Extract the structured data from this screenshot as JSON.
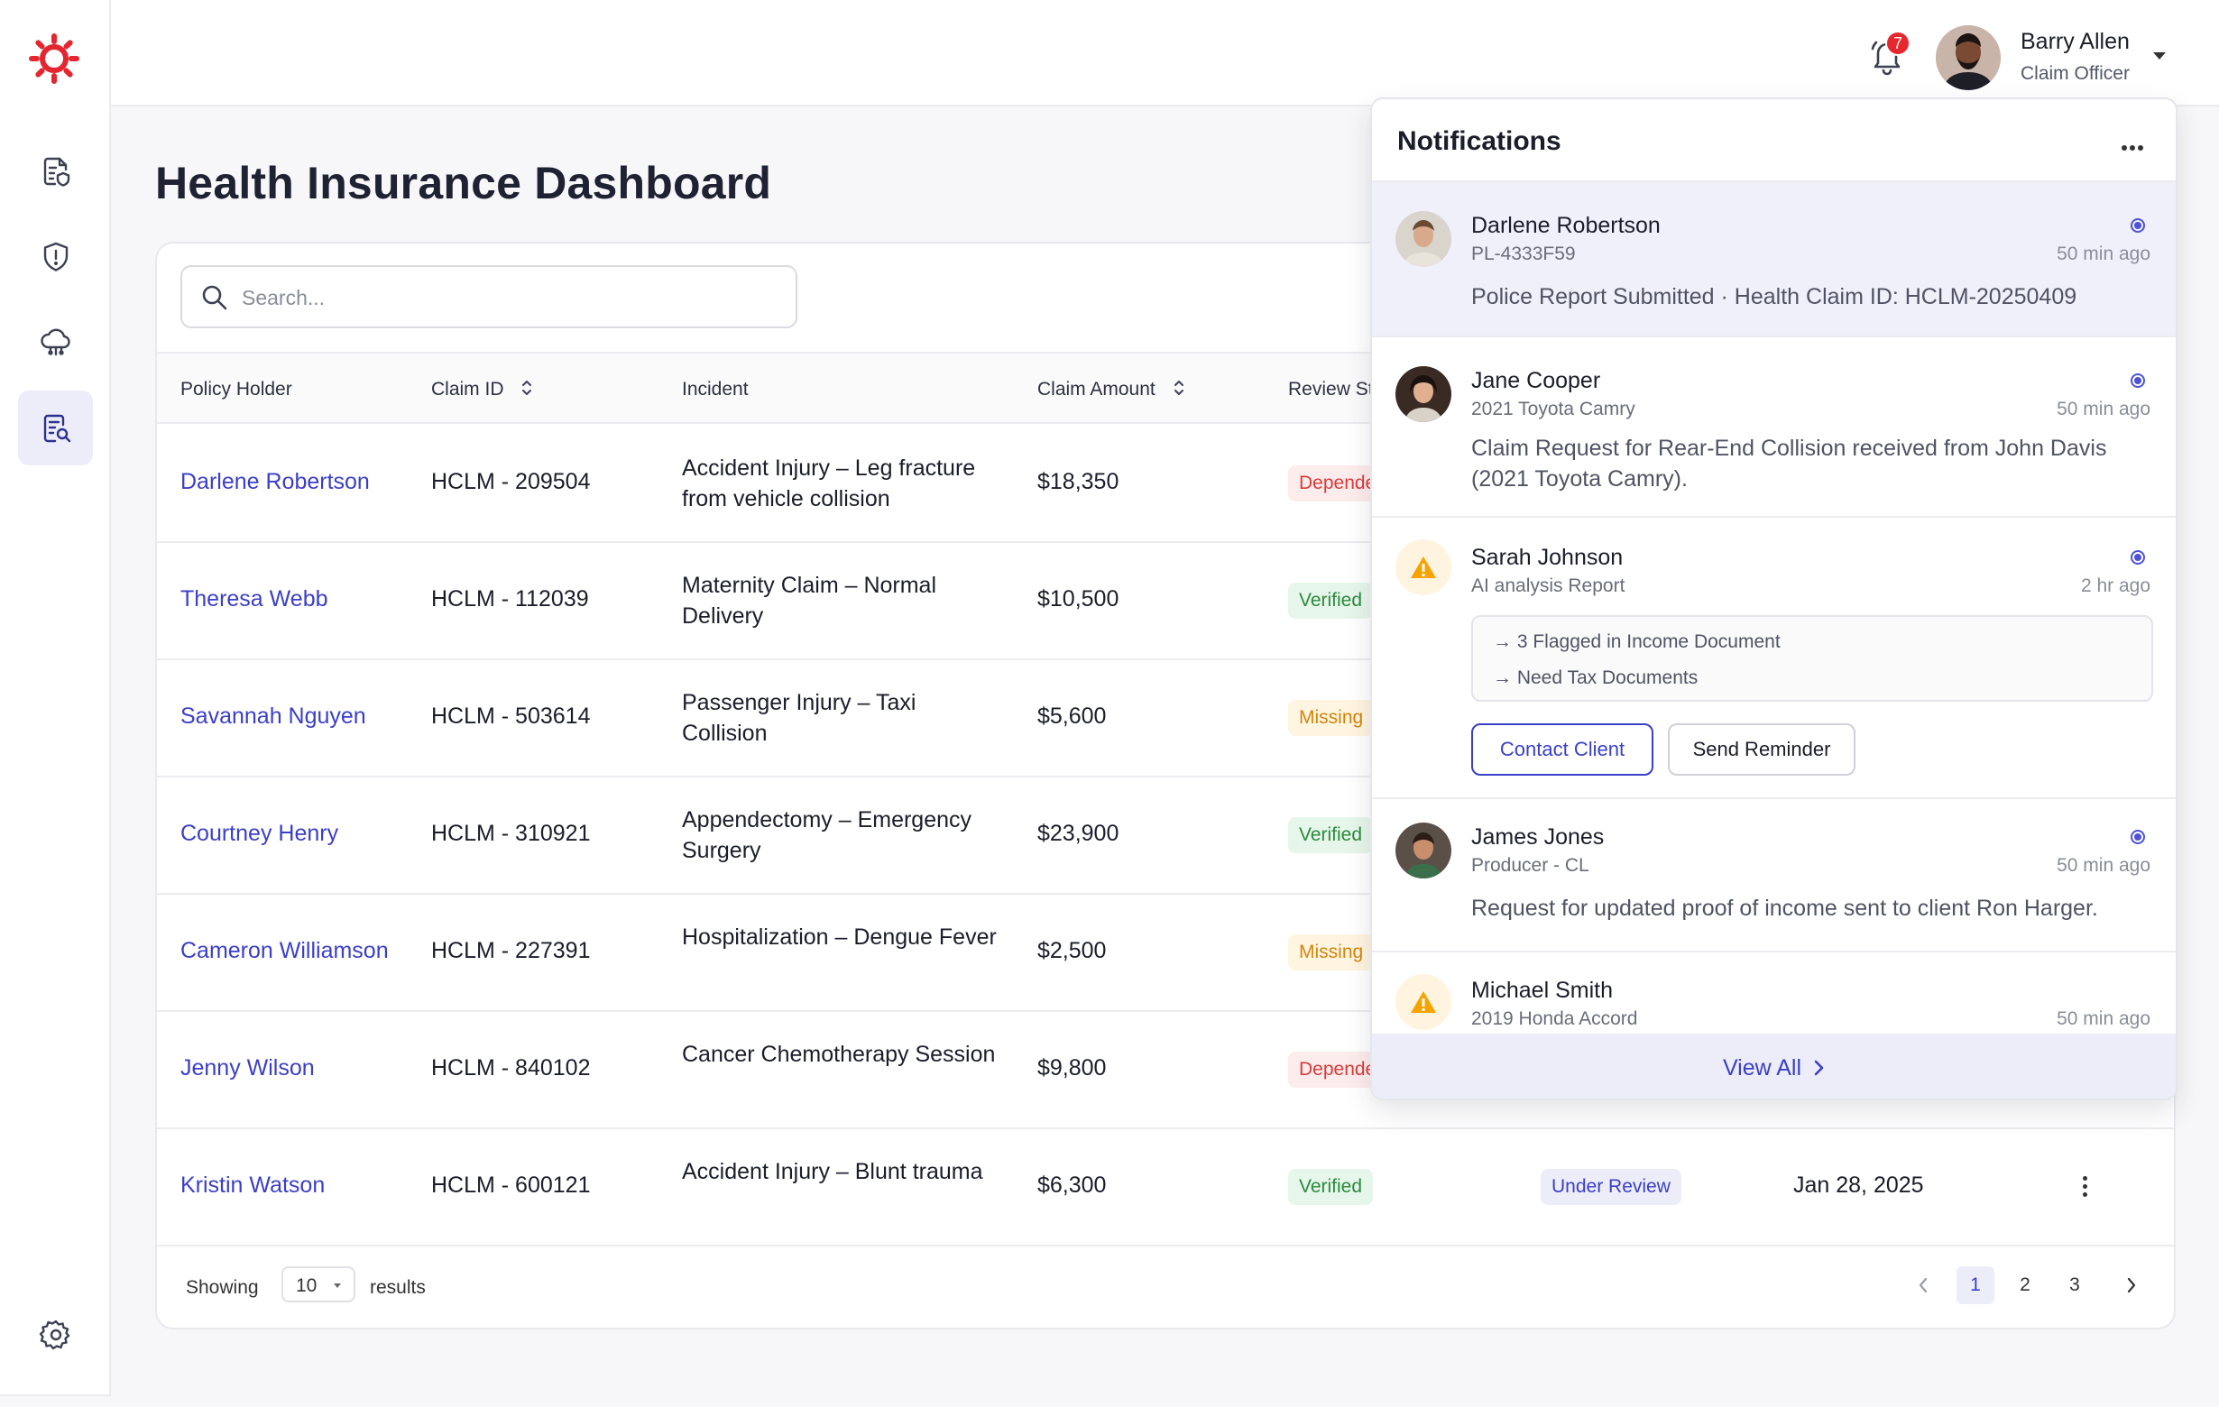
{
  "header": {
    "notification_count": "7",
    "user_name": "Barry Allen",
    "user_role": "Claim Officer"
  },
  "page": {
    "title": "Health Insurance Dashboard"
  },
  "search": {
    "placeholder": "Search..."
  },
  "table": {
    "columns": [
      "Policy Holder",
      "Claim ID",
      "Incident",
      "Claim Amount",
      "Review St"
    ],
    "rows": [
      {
        "holder": "Darlene Robertson",
        "claim_id": "HCLM - 209504",
        "incident": "Accident Injury – Leg fracture from vehicle collision",
        "amount": "$18,350",
        "review": "Depende",
        "review_kind": "dep"
      },
      {
        "holder": "Theresa Webb",
        "claim_id": "HCLM - 112039",
        "incident": "Maternity Claim – Normal Delivery",
        "amount": "$10,500",
        "review": "Verified",
        "review_kind": "ver"
      },
      {
        "holder": "Savannah Nguyen",
        "claim_id": "HCLM - 503614",
        "incident": "Passenger Injury – Taxi Collision",
        "amount": "$5,600",
        "review": "Missing",
        "review_kind": "mis"
      },
      {
        "holder": "Courtney Henry",
        "claim_id": "HCLM - 310921",
        "incident": "Appendectomy – Emergency Surgery",
        "amount": "$23,900",
        "review": "Verified",
        "review_kind": "ver"
      },
      {
        "holder": "Cameron Williamson",
        "claim_id": "HCLM - 227391",
        "incident": "Hospitalization – Dengue Fever",
        "amount": "$2,500",
        "review": "Missing",
        "review_kind": "mis"
      },
      {
        "holder": "Jenny Wilson",
        "claim_id": "HCLM - 840102",
        "incident": "Cancer Chemotherapy Session",
        "amount": "$9,800",
        "review": "Depende",
        "review_kind": "dep"
      },
      {
        "holder": "Kristin Watson",
        "claim_id": "HCLM - 600121",
        "incident": "Accident Injury – Blunt trauma",
        "amount": "$6,300",
        "review": "Verified",
        "review_kind": "ver",
        "status": "Under Review",
        "date": "Jan 28, 2025"
      }
    ]
  },
  "footer": {
    "showing": "Showing",
    "per_page": "10",
    "results": "results",
    "pages": [
      "1",
      "2",
      "3"
    ]
  },
  "notifications": {
    "title": "Notifications",
    "items": [
      {
        "name": "Darlene Robertson",
        "sub": "PL-4333F59",
        "time": "50 min ago",
        "message": "Police Report Submitted · Health Claim ID: HCLM-20250409"
      },
      {
        "name": "Jane Cooper",
        "sub": "2021 Toyota Camry",
        "time": "50 min ago",
        "message": "Claim Request for Rear-End Collision received from John Davis (2021 Toyota Camry)."
      },
      {
        "name": "Sarah Johnson",
        "sub": "AI analysis Report",
        "time": "2 hr ago",
        "lines": [
          "→ 3 Flagged in Income Document",
          "→ Need Tax Documents"
        ],
        "actions": [
          "Contact Client",
          "Send Reminder"
        ]
      },
      {
        "name": "James Jones",
        "sub": "Producer - CL",
        "time": "50 min ago",
        "message": "Request for updated proof of income sent to client Ron Harger."
      },
      {
        "name": "Michael Smith",
        "sub": "2019 Honda Accord",
        "time": "50 min ago"
      }
    ],
    "view_all": "View All"
  }
}
